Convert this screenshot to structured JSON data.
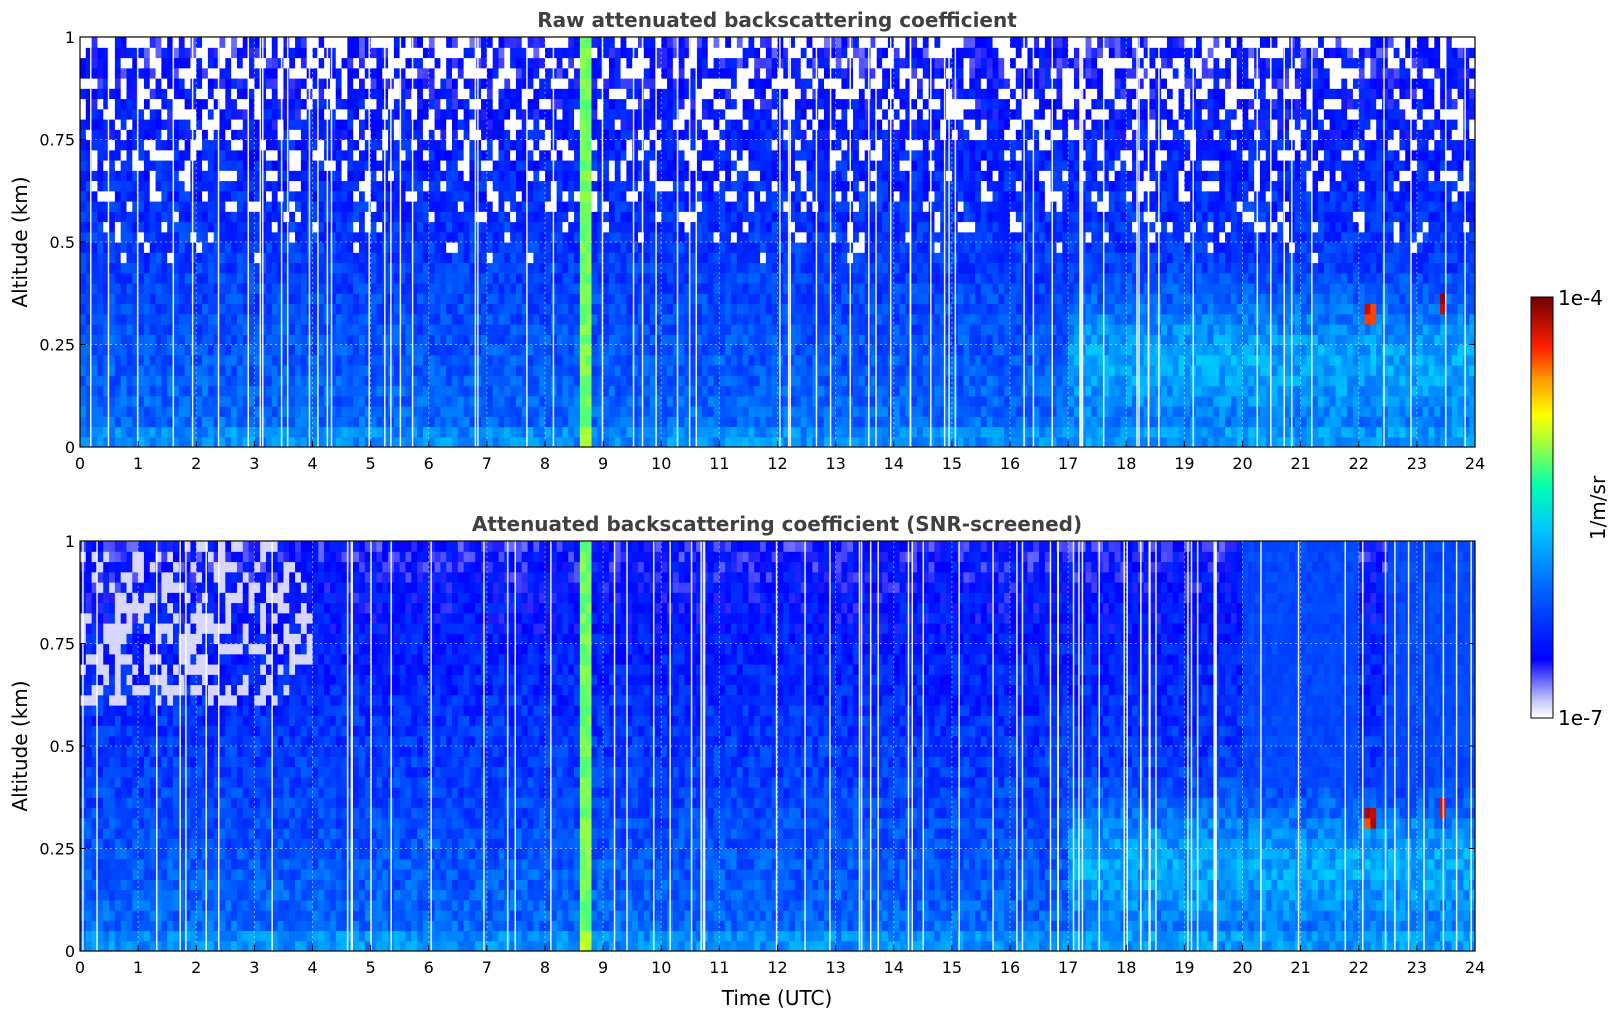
{
  "chart_data": [
    {
      "type": "heatmap",
      "title": "Raw attenuated backscattering coefficient",
      "xlabel": "",
      "ylabel": "Altitude (km)",
      "xlim": [
        0,
        24
      ],
      "ylim": [
        0,
        1
      ],
      "x_ticks": [
        "0",
        "1",
        "2",
        "3",
        "4",
        "5",
        "6",
        "7",
        "8",
        "9",
        "10",
        "11",
        "12",
        "13",
        "14",
        "15",
        "16",
        "17",
        "18",
        "19",
        "20",
        "21",
        "22",
        "23",
        "24"
      ],
      "y_ticks": [
        "0",
        "0.25",
        "0.5",
        "0.75",
        "1"
      ],
      "grid": true,
      "features": [
        {
          "x": 8.7,
          "description": "vertical enhanced column"
        },
        {
          "x": 22.2,
          "y": 0.33,
          "level": "high"
        },
        {
          "x": 23.5,
          "y": 0.35,
          "level": "high"
        }
      ]
    },
    {
      "type": "heatmap",
      "title": "Attenuated backscattering coefficient (SNR-screened)",
      "xlabel": "Time (UTC)",
      "ylabel": "Altitude (km)",
      "xlim": [
        0,
        24
      ],
      "ylim": [
        0,
        1
      ],
      "x_ticks": [
        "0",
        "1",
        "2",
        "3",
        "4",
        "5",
        "6",
        "7",
        "8",
        "9",
        "10",
        "11",
        "12",
        "13",
        "14",
        "15",
        "16",
        "17",
        "18",
        "19",
        "20",
        "21",
        "22",
        "23",
        "24"
      ],
      "y_ticks": [
        "0",
        "0.25",
        "0.5",
        "0.75",
        "1"
      ],
      "grid": true
    }
  ],
  "colorbar": {
    "min_label": "1e-7",
    "max_label": "1e-4",
    "unit": "1/m/sr",
    "scale": "log",
    "colormap": [
      "#ffffff",
      "#c8c8ff",
      "#0000ff",
      "#0060ff",
      "#00c8ff",
      "#00ffb0",
      "#a0ff40",
      "#ffff00",
      "#ffa000",
      "#ff2000",
      "#a00000",
      "#700000"
    ]
  }
}
